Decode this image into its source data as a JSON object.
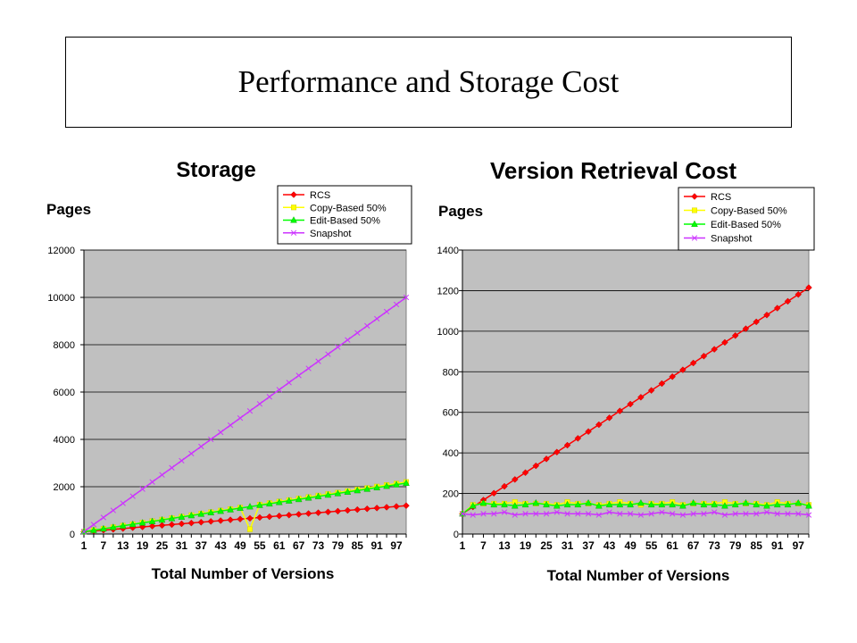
{
  "slide": {
    "title": "Performance and Storage Cost"
  },
  "chart_data": [
    {
      "type": "line",
      "title": "Storage",
      "ylabel": "Pages",
      "xlabel": "Total Number of Versions",
      "ylim": [
        0,
        12000
      ],
      "yticks": [
        0,
        2000,
        4000,
        6000,
        8000,
        10000,
        12000
      ],
      "xlim": [
        1,
        100
      ],
      "xticks": [
        1,
        7,
        13,
        19,
        25,
        31,
        37,
        43,
        49,
        55,
        61,
        67,
        73,
        79,
        85,
        91,
        97
      ],
      "grid": true,
      "legend": "top-right",
      "series": [
        {
          "name": "RCS",
          "color": "#ff0000",
          "marker": "diamond",
          "start": 100,
          "end": 1200
        },
        {
          "name": "Copy-Based 50%",
          "color": "#ffff00",
          "marker": "square",
          "start": 100,
          "end": 2200,
          "outlier": {
            "x": 51,
            "y": 200
          }
        },
        {
          "name": "Edit-Based 50%",
          "color": "#00ff00",
          "marker": "triangle",
          "start": 100,
          "end": 2150
        },
        {
          "name": "Snapshot",
          "color": "#cc33ff",
          "marker": "x",
          "start": 100,
          "end": 10000
        }
      ]
    },
    {
      "type": "line",
      "title": "Version Retrieval Cost",
      "ylabel": "Pages",
      "xlabel": "Total Number of Versions",
      "ylim": [
        0,
        1400
      ],
      "yticks": [
        0,
        200,
        400,
        600,
        800,
        1000,
        1200,
        1400
      ],
      "xlim": [
        1,
        100
      ],
      "xticks": [
        1,
        7,
        13,
        19,
        25,
        31,
        37,
        43,
        49,
        55,
        61,
        67,
        73,
        79,
        85,
        91,
        97
      ],
      "grid": true,
      "legend": "top-right",
      "series": [
        {
          "name": "RCS",
          "color": "#ff0000",
          "marker": "diamond",
          "start": 100,
          "end": 1215
        },
        {
          "name": "Copy-Based 50%",
          "color": "#ffff00",
          "marker": "square",
          "start": 100,
          "end": 150,
          "flat": 150
        },
        {
          "name": "Edit-Based 50%",
          "color": "#00ff00",
          "marker": "triangle",
          "start": 100,
          "end": 145,
          "flat": 145
        },
        {
          "name": "Snapshot",
          "color": "#cc33ff",
          "marker": "x",
          "start": 100,
          "end": 100,
          "flat": 100
        }
      ]
    }
  ]
}
